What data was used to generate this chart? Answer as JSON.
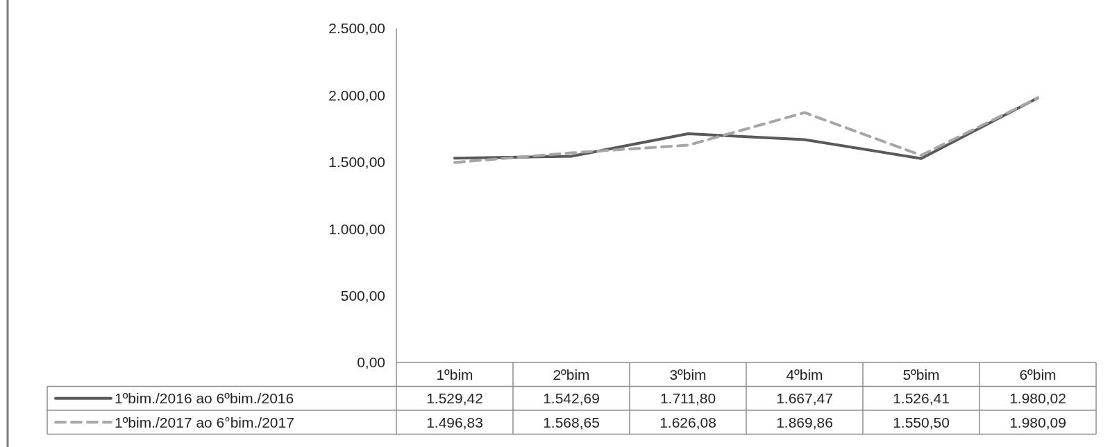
{
  "chart_data": {
    "type": "line",
    "categories": [
      "1ºbim",
      "2ºbim",
      "3ºbim",
      "4ºbim",
      "5ºbim",
      "6ºbim"
    ],
    "series": [
      {
        "name": "1ºbim./2016 ao 6ºbim./2016",
        "color": "#595959",
        "line_style": "solid",
        "values": [
          1529.42,
          1542.69,
          1711.8,
          1667.47,
          1526.41,
          1980.02
        ],
        "value_labels": [
          "1.529,42",
          "1.542,69",
          "1.711,80",
          "1.667,47",
          "1.526,41",
          "1.980,02"
        ]
      },
      {
        "name": "1ºbim./2017 ao 6°bim./2017",
        "color": "#a6a6a6",
        "line_style": "dashed",
        "values": [
          1496.83,
          1568.65,
          1626.08,
          1869.86,
          1550.5,
          1980.09
        ],
        "value_labels": [
          "1.496,83",
          "1.568,65",
          "1.626,08",
          "1.869,86",
          "1.550,50",
          "1.980,09"
        ]
      }
    ],
    "ylim": [
      0,
      2500
    ],
    "yticks": [
      {
        "value": 0,
        "label": "0,00"
      },
      {
        "value": 500,
        "label": "500,00"
      },
      {
        "value": 1000,
        "label": "1.000,00"
      },
      {
        "value": 1500,
        "label": "1.500,00"
      },
      {
        "value": 2000,
        "label": "2.000,00"
      },
      {
        "value": 2500,
        "label": "2.500,00"
      }
    ],
    "grid": false,
    "legend": "bottom",
    "marker": "none"
  }
}
